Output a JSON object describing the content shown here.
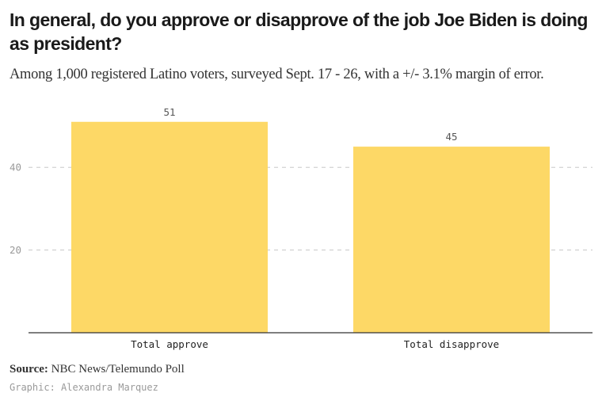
{
  "chart_data": {
    "type": "bar",
    "title": "In general, do you approve or disapprove of the job Joe Biden is doing as president?",
    "subtitle": "Among 1,000 registered Latino voters, surveyed Sept. 17 - 26, with a +/- 3.1% margin of error.",
    "categories": [
      "Total approve",
      "Total disapprove"
    ],
    "values": [
      51,
      45
    ],
    "value_labels": [
      "51",
      "45"
    ],
    "xlabel": "",
    "ylabel": "",
    "ylim": [
      0,
      56
    ],
    "yticks": [
      20,
      40
    ],
    "ytick_labels": [
      "20",
      "40"
    ],
    "grid": "horizontal-dashed",
    "bar_color": "#fdd866"
  },
  "footer": {
    "source_label": "Source:",
    "source_text": "NBC News/Telemundo Poll",
    "credit": "Graphic: Alexandra Marquez"
  }
}
